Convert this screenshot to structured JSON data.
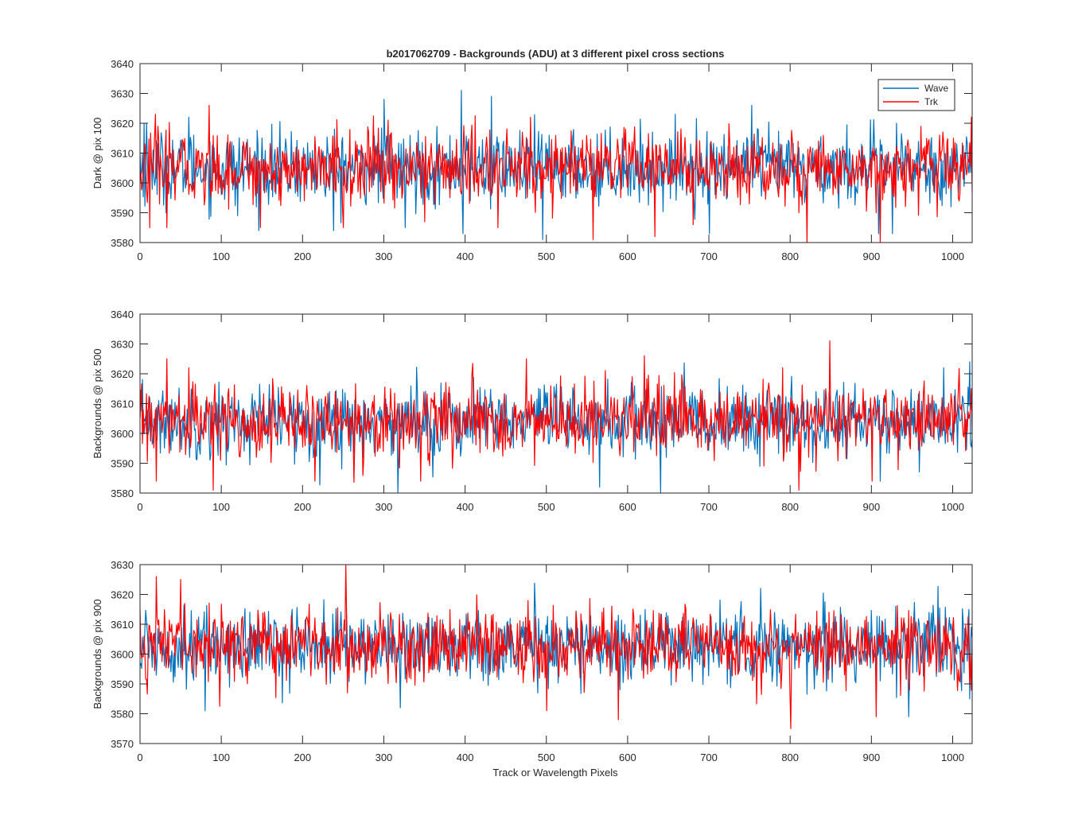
{
  "figure": {
    "title": "b2017062709 - Backgrounds (ADU) at 3 different pixel cross sections",
    "xlabel": "Track or Wavelength Pixels",
    "legend": {
      "entries": [
        "Wave",
        "Trk"
      ],
      "placement": "top-right"
    },
    "colors": {
      "Wave": "#0072BD",
      "Trk": "#FF0000",
      "axes": "#262626",
      "background": "#FFFFFF"
    }
  },
  "chart_data": [
    {
      "type": "line",
      "ylabel": "Dark @ pix 100",
      "xlim": [
        0,
        1024
      ],
      "ylim": [
        3580,
        3640
      ],
      "xticks": [
        "0",
        "100",
        "200",
        "300",
        "400",
        "500",
        "600",
        "700",
        "800",
        "900",
        "1000"
      ],
      "yticks": [
        "3580",
        "3590",
        "3600",
        "3610",
        "3620",
        "3630",
        "3640"
      ],
      "grid": false,
      "noise": {
        "x_start": 0,
        "x_end": 1024,
        "n_points": 1024,
        "center": 3605,
        "spread_sd": 6
      },
      "series": [
        {
          "name": "Wave",
          "x": [
            0,
            5,
            8,
            10,
            16,
            60,
            120,
            238,
            300,
            326,
            395,
            397,
            432,
            495,
            496,
            557,
            633,
            700,
            752,
            820,
            908,
            925,
            997,
            1020
          ],
          "values": [
            3610,
            3620,
            3620,
            3600,
            3611,
            3622,
            3589,
            3584,
            3628,
            3585,
            3631,
            3583,
            3629,
            3581,
            3605,
            3587,
            3596,
            3583,
            3626,
            3592,
            3583,
            3583,
            3592,
            3609
          ]
        },
        {
          "name": "Trk",
          "x": [
            0,
            12,
            19,
            33,
            85,
            148,
            202,
            250,
            305,
            350,
            440,
            480,
            557,
            633,
            680,
            810,
            820,
            905,
            910,
            1000,
            1022
          ],
          "values": [
            3600,
            3585,
            3623,
            3585,
            3626,
            3585,
            3594,
            3585,
            3621,
            3587,
            3585,
            3622,
            3581,
            3582,
            3586,
            3590,
            3579,
            3590,
            3579,
            3615,
            3622
          ]
        }
      ]
    },
    {
      "type": "line",
      "ylabel": "Backgrounds @ pix 500",
      "xlim": [
        0,
        1024
      ],
      "ylim": [
        3580,
        3640
      ],
      "xticks": [
        "0",
        "100",
        "200",
        "300",
        "400",
        "500",
        "600",
        "700",
        "800",
        "900",
        "1000"
      ],
      "yticks": [
        "3580",
        "3590",
        "3600",
        "3610",
        "3620",
        "3630",
        "3640"
      ],
      "grid": false,
      "noise": {
        "x_start": 0,
        "x_end": 1024,
        "n_points": 1024,
        "center": 3604,
        "spread_sd": 6
      },
      "series": [
        {
          "name": "Wave",
          "x": [
            0,
            4,
            8,
            12,
            317,
            565,
            640,
            910,
            1020
          ],
          "values": [
            3605,
            3600,
            3600,
            3612,
            3580,
            3582,
            3580,
            3584,
            3624
          ]
        },
        {
          "name": "Trk",
          "x": [
            0,
            20,
            33,
            60,
            90,
            215,
            345,
            475,
            620,
            790,
            810,
            848,
            900,
            1022
          ],
          "values": [
            3605,
            3584,
            3625,
            3622,
            3581,
            3584,
            3584,
            3625,
            3626,
            3622,
            3581,
            3631,
            3584,
            3615
          ]
        }
      ]
    },
    {
      "type": "line",
      "ylabel": "Backgrounds @ pix 900",
      "xlim": [
        0,
        1024
      ],
      "ylim": [
        3570,
        3630
      ],
      "xticks": [
        "0",
        "100",
        "200",
        "300",
        "400",
        "500",
        "600",
        "700",
        "800",
        "900",
        "1000"
      ],
      "yticks": [
        "3570",
        "3580",
        "3590",
        "3600",
        "3610",
        "3620",
        "3630"
      ],
      "grid": false,
      "noise": {
        "x_start": 0,
        "x_end": 1024,
        "n_points": 1024,
        "center": 3603,
        "spread_sd": 6
      },
      "series": [
        {
          "name": "Wave",
          "x": [
            0,
            80,
            320,
            590,
            945,
            1020
          ],
          "values": [
            3596,
            3581,
            3582,
            3588,
            3579,
            3585
          ]
        },
        {
          "name": "Trk",
          "x": [
            0,
            20,
            50,
            253,
            255,
            500,
            588,
            800,
            905,
            1020
          ],
          "values": [
            3615,
            3626,
            3625,
            3630,
            3587,
            3581,
            3578,
            3575,
            3579,
            3590
          ]
        }
      ]
    }
  ]
}
